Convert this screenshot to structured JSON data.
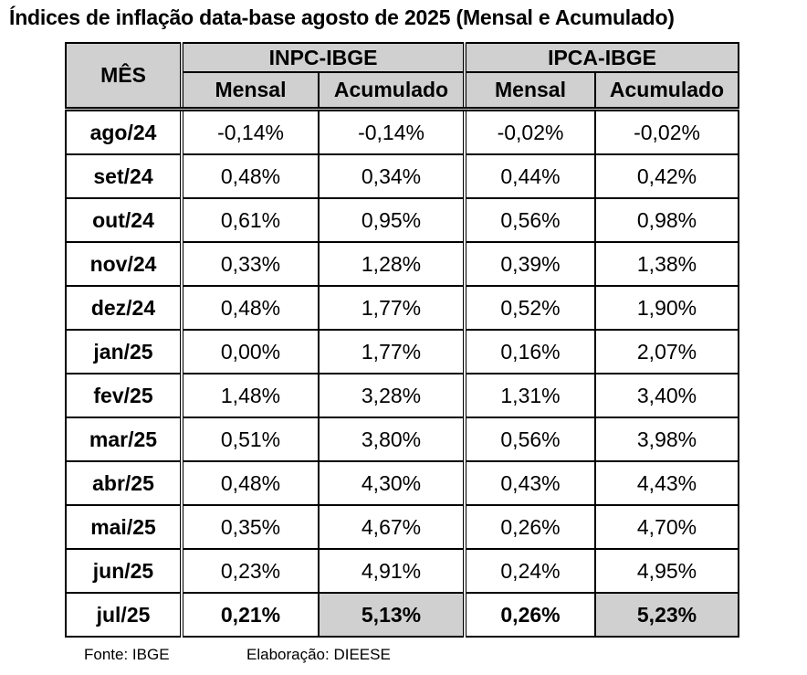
{
  "title": "Índices de inflação data-base agosto de 2025 (Mensal e Acumulado)",
  "headers": {
    "month": "MÊS",
    "group1": "INPC-IBGE",
    "group2": "IPCA-IBGE",
    "monthly": "Mensal",
    "accumulated": "Acumulado"
  },
  "rows": [
    {
      "month": "ago/24",
      "inpc_m": "-0,14%",
      "inpc_a": "-0,14%",
      "ipca_m": "-0,02%",
      "ipca_a": "-0,02%"
    },
    {
      "month": "set/24",
      "inpc_m": "0,48%",
      "inpc_a": "0,34%",
      "ipca_m": "0,44%",
      "ipca_a": "0,42%"
    },
    {
      "month": "out/24",
      "inpc_m": "0,61%",
      "inpc_a": "0,95%",
      "ipca_m": "0,56%",
      "ipca_a": "0,98%"
    },
    {
      "month": "nov/24",
      "inpc_m": "0,33%",
      "inpc_a": "1,28%",
      "ipca_m": "0,39%",
      "ipca_a": "1,38%"
    },
    {
      "month": "dez/24",
      "inpc_m": "0,48%",
      "inpc_a": "1,77%",
      "ipca_m": "0,52%",
      "ipca_a": "1,90%"
    },
    {
      "month": "jan/25",
      "inpc_m": "0,00%",
      "inpc_a": "1,77%",
      "ipca_m": "0,16%",
      "ipca_a": "2,07%"
    },
    {
      "month": "fev/25",
      "inpc_m": "1,48%",
      "inpc_a": "3,28%",
      "ipca_m": "1,31%",
      "ipca_a": "3,40%"
    },
    {
      "month": "mar/25",
      "inpc_m": "0,51%",
      "inpc_a": "3,80%",
      "ipca_m": "0,56%",
      "ipca_a": "3,98%"
    },
    {
      "month": "abr/25",
      "inpc_m": "0,48%",
      "inpc_a": "4,30%",
      "ipca_m": "0,43%",
      "ipca_a": "4,43%"
    },
    {
      "month": "mai/25",
      "inpc_m": "0,35%",
      "inpc_a": "4,67%",
      "ipca_m": "0,26%",
      "ipca_a": "4,70%"
    },
    {
      "month": "jun/25",
      "inpc_m": "0,23%",
      "inpc_a": "4,91%",
      "ipca_m": "0,24%",
      "ipca_a": "4,95%"
    },
    {
      "month": "jul/25",
      "inpc_m": "0,21%",
      "inpc_a": "5,13%",
      "ipca_m": "0,26%",
      "ipca_a": "5,23%"
    }
  ],
  "footer": {
    "source": "Fonte: IBGE",
    "author": "Elaboração: DIEESE"
  },
  "colors": {
    "header_bg": "#d0d0d0",
    "highlight_bg": "#d0d0d0"
  }
}
